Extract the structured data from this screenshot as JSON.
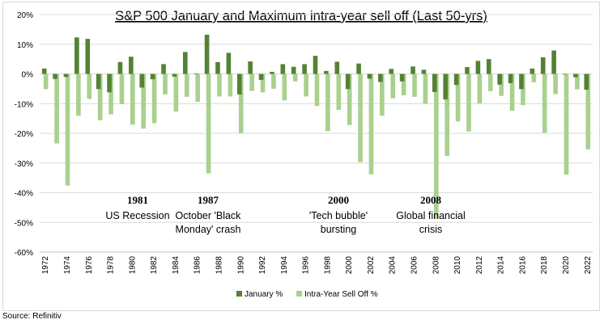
{
  "chart_data": {
    "type": "bar",
    "title": "S&P 500 January and Maximum intra-year sell off (Last 50-yrs)",
    "xlabel": "",
    "ylabel": "",
    "ylim": [
      -60,
      20
    ],
    "y_ticks": [
      20,
      10,
      0,
      -10,
      -20,
      -30,
      -40,
      -50,
      -60
    ],
    "y_tick_labels": [
      "20%",
      "10%",
      "0%",
      "-10%",
      "-20%",
      "-30%",
      "-40%",
      "-50%",
      "-60%"
    ],
    "grid": "horizontal",
    "legend_position": "bottom",
    "categories": [
      "1972",
      "1973",
      "1974",
      "1975",
      "1976",
      "1977",
      "1978",
      "1979",
      "1980",
      "1981",
      "1982",
      "1983",
      "1984",
      "1985",
      "1986",
      "1987",
      "1988",
      "1989",
      "1990",
      "1991",
      "1992",
      "1993",
      "1994",
      "1995",
      "1996",
      "1997",
      "1998",
      "1999",
      "2000",
      "2001",
      "2002",
      "2003",
      "2004",
      "2005",
      "2006",
      "2007",
      "2008",
      "2009",
      "2010",
      "2011",
      "2012",
      "2013",
      "2014",
      "2015",
      "2016",
      "2017",
      "2018",
      "2019",
      "2020",
      "2021",
      "2022"
    ],
    "x_tick_labels": [
      "1972",
      "1974",
      "1976",
      "1978",
      "1980",
      "1982",
      "1984",
      "1986",
      "1988",
      "1990",
      "1992",
      "1994",
      "1996",
      "1998",
      "2000",
      "2002",
      "2004",
      "2006",
      "2008",
      "2010",
      "2012",
      "2014",
      "2016",
      "2018",
      "2020",
      "2022"
    ],
    "series": [
      {
        "name": "January %",
        "color": "#548235",
        "values": [
          1.8,
          -1.7,
          -1.0,
          12.3,
          11.8,
          -5.1,
          -6.2,
          4.0,
          5.8,
          -4.6,
          -1.8,
          3.3,
          -0.9,
          7.4,
          0.2,
          13.2,
          4.0,
          7.1,
          -6.9,
          4.2,
          -2.0,
          0.7,
          3.3,
          2.4,
          3.3,
          6.1,
          1.0,
          4.1,
          -5.1,
          3.5,
          -1.6,
          -2.7,
          1.7,
          -2.5,
          2.5,
          1.4,
          -6.1,
          -8.6,
          -3.7,
          2.3,
          4.4,
          5.0,
          -3.6,
          -3.1,
          -5.1,
          1.8,
          5.6,
          7.9,
          -0.2,
          -1.1,
          -5.3
        ]
      },
      {
        "name": "Intra-Year Sell Off %",
        "color": "#a9d18e",
        "values": [
          -5.1,
          -23.4,
          -37.6,
          -14.1,
          -8.4,
          -15.6,
          -13.6,
          -10.2,
          -17.1,
          -18.4,
          -16.6,
          -6.9,
          -12.7,
          -7.7,
          -9.4,
          -33.5,
          -7.6,
          -7.6,
          -19.9,
          -5.7,
          -6.2,
          -5.0,
          -8.9,
          -2.5,
          -7.6,
          -10.8,
          -19.3,
          -12.1,
          -17.2,
          -29.7,
          -33.8,
          -14.1,
          -8.2,
          -7.2,
          -7.7,
          -10.1,
          -48.8,
          -27.6,
          -16.0,
          -19.4,
          -9.9,
          -5.8,
          -7.4,
          -12.4,
          -10.5,
          -2.8,
          -19.8,
          -6.8,
          -33.9,
          -5.2,
          -25.4
        ]
      }
    ],
    "annotations": [
      {
        "year": "1981",
        "text": "US Recession",
        "category": "1981"
      },
      {
        "year": "1987",
        "text": "October 'Black Monday' crash",
        "category": "1988"
      },
      {
        "year": "2000",
        "text": "'Tech bubble' bursting",
        "category": "2000"
      },
      {
        "year": "2008",
        "text": "Global financial crisis",
        "category": "2008"
      }
    ]
  },
  "annotation_lines": {
    "a1981": [
      "US Recession"
    ],
    "a1987": [
      "October 'Black",
      "Monday' crash"
    ],
    "a2000": [
      "'Tech bubble'",
      "bursting"
    ],
    "a2008": [
      "Global financial",
      "crisis"
    ]
  },
  "source": "Source: Refinitiv"
}
